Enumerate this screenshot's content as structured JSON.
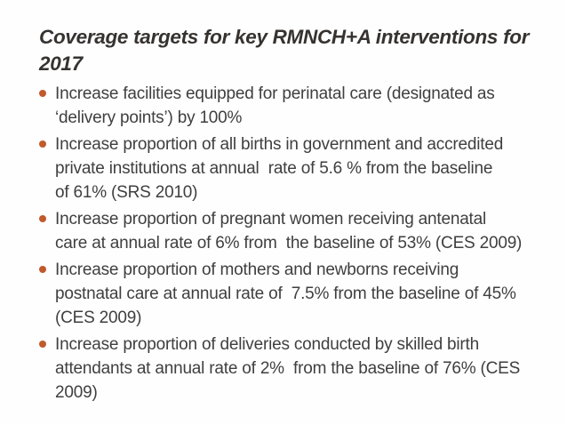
{
  "slide": {
    "title": "Coverage targets for key RMNCH+A interventions for\n2017",
    "bullets": [
      "Increase facilities equipped for perinatal care (designated as\n‘delivery points’) by 100%",
      "Increase proportion of all births in government and accredited\nprivate institutions at annual  rate of 5.6 % from the baseline\nof 61% (SRS 2010)",
      "Increase proportion of pregnant women receiving antenatal\ncare at annual rate of 6% from  the baseline of 53% (CES 2009)",
      "Increase proportion of mothers and newborns receiving\npostnatal care at annual rate of  7.5% from the baseline of 45%\n(CES 2009)",
      "Increase proportion of deliveries conducted by skilled birth\nattendants at annual rate of 2%  from the baseline of 76% (CES\n2009)"
    ],
    "icons": {
      "bullet_marker": "circle-bullet"
    },
    "colors": {
      "background": "#fefefe",
      "title_text": "#363230",
      "body_text": "#3f3f3f",
      "bullet_marker": "#c05a2c"
    }
  }
}
